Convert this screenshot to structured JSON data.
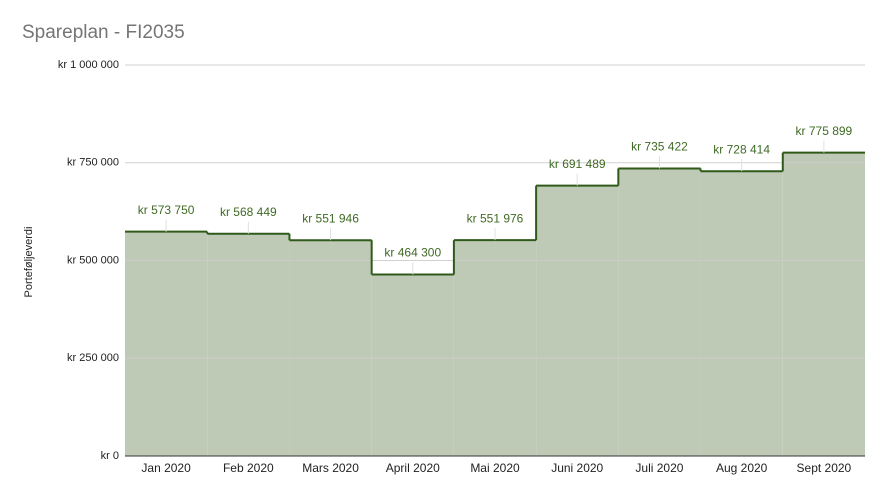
{
  "chart_data": {
    "type": "step-area",
    "title": "Spareplan - FI2035",
    "y_label": "Porteføljeverdi",
    "categories": [
      "Jan 2020",
      "Feb 2020",
      "Mars 2020",
      "April 2020",
      "Mai 2020",
      "Juni 2020",
      "Juli 2020",
      "Aug 2020",
      "Sept 2020"
    ],
    "values": [
      573750,
      568449,
      551946,
      464300,
      551976,
      691489,
      735422,
      728414,
      775899
    ],
    "value_labels": [
      "kr 573 750",
      "kr 568 449",
      "kr 551 946",
      "kr 464 300",
      "kr 551 976",
      "kr 691 489",
      "kr 735 422",
      "kr 728 414",
      "kr 775 899"
    ],
    "color": "#2f5a1a",
    "fill": "#bfcab6",
    "ylim": [
      0,
      1000000
    ],
    "yticks": [
      {
        "value": 0,
        "label": "kr 0"
      },
      {
        "value": 250000,
        "label": "kr 250 000"
      },
      {
        "value": 500000,
        "label": "kr 500 000"
      },
      {
        "value": 750000,
        "label": "kr 750 000"
      },
      {
        "value": 1000000,
        "label": "kr 1 000 000"
      }
    ],
    "grid": true
  }
}
